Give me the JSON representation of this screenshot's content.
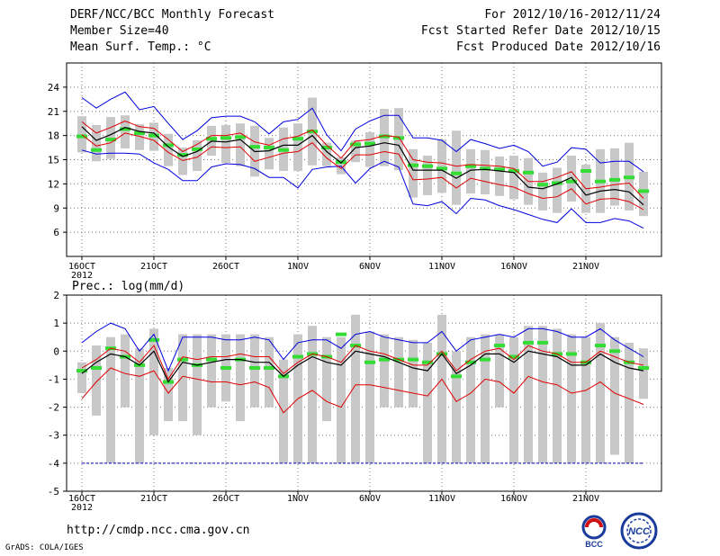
{
  "header": {
    "title": "DERF/NCC/BCC Monthly Forecast",
    "member_size": "Member Size=40",
    "variable1": "Mean Surf. Temp.: °C",
    "period": "For 2012/10/16-2012/11/24",
    "started": "Fcst Started Refer Date 2012/10/15",
    "produced": "Fcst Produced Date 2012/10/16"
  },
  "footer": {
    "url": "http://cmdp.ncc.cma.gov.cn",
    "grads": "GrADS: COLA/IGES",
    "logo_left": "BCC",
    "logo_right": "NCC"
  },
  "colors": {
    "ensemble_mean": "#000000",
    "spread": "#e00000",
    "envelope": "#0000e0",
    "box": "#c8c8c8",
    "climatology": "#33dd33",
    "baseline": "#0000c0"
  },
  "chart_data": [
    {
      "type": "line",
      "title": "Mean Surf. Temp.: °C",
      "x_tick_labels": [
        "16OCT\n2012",
        "21OCT",
        "26OCT",
        "1NOV",
        "6NOV",
        "11NOV",
        "16NOV",
        "21NOV"
      ],
      "x_tick_days": [
        1,
        6,
        11,
        16,
        21,
        26,
        31,
        36
      ],
      "ylim": [
        3,
        27
      ],
      "y_ticks": [
        6,
        9,
        12,
        15,
        18,
        21,
        24
      ],
      "series": [
        {
          "name": "max",
          "values": [
            22.7,
            21.4,
            22.5,
            23.4,
            21.2,
            21.6,
            19.5,
            17.5,
            18.6,
            20.2,
            20.4,
            20.4,
            19.7,
            18.2,
            19.7,
            20.0,
            21.4,
            18.1,
            16.1,
            18.8,
            19.8,
            20.5,
            20.5,
            17.7,
            17.7,
            17.4,
            16.0,
            17.5,
            17.0,
            16.4,
            16.8,
            16.0,
            14.2,
            14.7,
            16.5,
            16.3,
            14.6,
            14.8,
            14.8,
            13.5
          ]
        },
        {
          "name": "spread_upper",
          "values": [
            19.7,
            18.3,
            19.0,
            19.8,
            19.1,
            18.9,
            17.5,
            16.0,
            16.9,
            18.0,
            18.0,
            18.3,
            17.2,
            16.8,
            17.6,
            17.9,
            18.7,
            16.8,
            15.2,
            17.3,
            17.5,
            18.0,
            17.8,
            15.0,
            14.7,
            14.6,
            14.2,
            14.4,
            14.3,
            14.2,
            13.9,
            12.3,
            12.3,
            12.8,
            13.5,
            11.4,
            11.6,
            11.9,
            12.1,
            10.2
          ]
        },
        {
          "name": "mean",
          "values": [
            19.1,
            17.4,
            18.1,
            19.0,
            18.5,
            18.3,
            16.6,
            15.4,
            16.0,
            17.3,
            17.2,
            17.5,
            16.0,
            16.1,
            16.8,
            16.8,
            18.0,
            16.0,
            14.6,
            16.5,
            16.7,
            17.1,
            16.8,
            13.7,
            13.7,
            13.7,
            12.7,
            13.7,
            13.8,
            13.6,
            13.4,
            11.6,
            11.4,
            12.0,
            12.8,
            10.6,
            11.1,
            11.3,
            11.0,
            9.4
          ]
        },
        {
          "name": "spread_lower",
          "values": [
            18.1,
            16.7,
            17.1,
            18.3,
            17.9,
            17.4,
            15.9,
            14.9,
            15.3,
            16.6,
            16.5,
            16.6,
            14.8,
            15.3,
            15.8,
            16.0,
            17.1,
            15.2,
            13.9,
            15.6,
            15.6,
            16.0,
            15.7,
            12.5,
            12.6,
            12.8,
            11.5,
            12.7,
            12.3,
            11.9,
            11.6,
            10.8,
            10.2,
            10.4,
            11.4,
            9.5,
            10.1,
            10.2,
            9.8,
            8.8
          ]
        },
        {
          "name": "min",
          "values": [
            16.2,
            15.7,
            15.8,
            15.8,
            15.7,
            14.6,
            13.8,
            12.4,
            12.4,
            14.1,
            14.5,
            14.4,
            13.9,
            12.8,
            12.8,
            11.5,
            13.8,
            14.1,
            14.2,
            12.1,
            13.9,
            14.8,
            14.1,
            9.5,
            9.3,
            9.8,
            8.3,
            10.2,
            10.0,
            9.3,
            8.8,
            8.2,
            7.6,
            7.2,
            8.9,
            7.2,
            7.2,
            7.7,
            7.4,
            6.5
          ]
        },
        {
          "name": "box_top",
          "values": [
            20.4,
            19.3,
            20.3,
            20.5,
            19.4,
            19.6,
            18.2,
            16.5,
            17.4,
            19.2,
            19.3,
            19.5,
            19.2,
            17.7,
            19.0,
            19.5,
            22.7,
            17.1,
            15.3,
            17.4,
            18.4,
            21.3,
            21.4,
            16.3,
            15.5,
            17.5,
            18.6,
            16.3,
            16.2,
            15.4,
            15.5,
            15.2,
            13.4,
            14.0,
            15.5,
            14.4,
            16.3,
            16.4,
            17.1,
            13.5
          ]
        },
        {
          "name": "box_bottom",
          "values": [
            15.9,
            14.8,
            15.1,
            16.4,
            16.2,
            16.1,
            14.2,
            13.1,
            13.6,
            15.5,
            14.6,
            14.2,
            12.9,
            13.8,
            13.6,
            13.6,
            14.3,
            14.2,
            13.2,
            14.7,
            14.1,
            14.2,
            13.7,
            10.3,
            10.6,
            10.9,
            9.4,
            10.8,
            10.7,
            10.5,
            10.1,
            9.4,
            8.7,
            8.4,
            9.8,
            8.4,
            8.4,
            9.3,
            8.7,
            8.0
          ]
        },
        {
          "name": "climatology",
          "values": [
            17.9,
            16.2,
            17.5,
            18.8,
            18.3,
            18.0,
            16.8,
            15.6,
            16.3,
            17.6,
            17.7,
            17.8,
            16.6,
            16.5,
            16.2,
            17.6,
            18.5,
            16.5,
            14.7,
            16.9,
            17.0,
            17.9,
            17.7,
            14.3,
            14.2,
            13.9,
            13.3,
            14.2,
            13.9,
            13.8,
            13.6,
            13.4,
            11.9,
            12.1,
            12.3,
            13.6,
            12.3,
            12.5,
            12.8,
            11.1
          ]
        }
      ]
    },
    {
      "type": "line",
      "title": "Prec.: log(mm/d)",
      "x_tick_labels": [
        "16OCT\n2012",
        "21OCT",
        "26OCT",
        "1NOV",
        "6NOV",
        "11NOV",
        "16NOV",
        "21NOV"
      ],
      "x_tick_days": [
        1,
        6,
        11,
        16,
        21,
        26,
        31,
        36
      ],
      "ylim": [
        -5,
        2
      ],
      "y_ticks": [
        -5,
        -4,
        -3,
        -2,
        -1,
        0,
        1,
        2
      ],
      "series": [
        {
          "name": "max",
          "values": [
            0.3,
            0.7,
            1.0,
            0.8,
            0.0,
            0.6,
            -0.7,
            0.5,
            0.5,
            0.5,
            0.4,
            0.4,
            0.5,
            0.4,
            -0.3,
            0.3,
            0.4,
            0.4,
            0.1,
            0.6,
            0.7,
            0.5,
            0.4,
            0.3,
            0.3,
            0.7,
            0.0,
            0.4,
            0.5,
            0.6,
            0.5,
            0.8,
            0.8,
            0.7,
            0.5,
            0.5,
            0.8,
            0.4,
            0.1,
            -0.2
          ]
        },
        {
          "name": "spread_upper",
          "values": [
            -0.6,
            -0.3,
            0.1,
            0.0,
            -0.4,
            0.2,
            -1.0,
            -0.2,
            -0.3,
            -0.2,
            -0.2,
            -0.1,
            -0.2,
            -0.2,
            -0.8,
            -0.4,
            -0.1,
            -0.2,
            -0.4,
            0.2,
            0.0,
            -0.1,
            -0.3,
            -0.5,
            -0.5,
            0.0,
            -0.7,
            -0.3,
            0.0,
            0.1,
            -0.3,
            0.2,
            0.0,
            -0.1,
            -0.4,
            -0.4,
            0.0,
            -0.2,
            -0.4,
            -0.5
          ]
        },
        {
          "name": "mean",
          "values": [
            -0.8,
            -0.4,
            -0.1,
            -0.2,
            -0.5,
            0.0,
            -1.1,
            -0.4,
            -0.5,
            -0.4,
            -0.3,
            -0.3,
            -0.4,
            -0.4,
            -0.9,
            -0.5,
            -0.2,
            -0.4,
            -0.5,
            0.0,
            -0.1,
            -0.2,
            -0.4,
            -0.6,
            -0.7,
            -0.1,
            -0.8,
            -0.5,
            -0.1,
            -0.1,
            -0.4,
            0.0,
            -0.1,
            -0.2,
            -0.5,
            -0.5,
            -0.1,
            -0.4,
            -0.6,
            -0.7
          ]
        },
        {
          "name": "spread_lower",
          "values": [
            -1.7,
            -1.1,
            -0.6,
            -0.8,
            -0.9,
            -0.7,
            -1.5,
            -0.9,
            -1.0,
            -1.1,
            -1.1,
            -1.2,
            -1.1,
            -1.3,
            -2.2,
            -1.7,
            -1.4,
            -1.8,
            -2.0,
            -1.2,
            -1.2,
            -1.3,
            -1.4,
            -1.5,
            -1.6,
            -1.0,
            -1.8,
            -1.5,
            -1.0,
            -1.1,
            -1.5,
            -0.9,
            -1.1,
            -1.2,
            -1.5,
            -1.4,
            -1.1,
            -1.5,
            -1.7,
            -1.9
          ]
        },
        {
          "name": "box_top",
          "values": [
            -0.4,
            0.2,
            0.5,
            0.6,
            0.1,
            0.8,
            -0.6,
            0.6,
            0.6,
            0.6,
            0.6,
            0.6,
            0.6,
            0.5,
            -0.3,
            0.6,
            0.9,
            0.5,
            0.5,
            1.3,
            0.7,
            0.6,
            0.5,
            0.4,
            0.3,
            1.3,
            0.0,
            0.5,
            0.6,
            0.6,
            0.5,
            0.9,
            0.9,
            0.8,
            0.6,
            0.5,
            1.0,
            0.5,
            0.3,
            0.1
          ]
        },
        {
          "name": "box_bottom",
          "values": [
            -1.5,
            -2.3,
            -4.0,
            -2.0,
            -4.0,
            -3.0,
            -2.5,
            -2.5,
            -3.0,
            -2.0,
            -1.8,
            -2.5,
            -2.0,
            -2.0,
            -4.0,
            -4.0,
            -4.0,
            -2.5,
            -4.0,
            -4.0,
            -4.0,
            -2.0,
            -2.0,
            -2.0,
            -4.0,
            -4.0,
            -4.0,
            -4.0,
            -4.0,
            -2.0,
            -4.0,
            -4.0,
            -4.0,
            -4.0,
            -4.0,
            -4.0,
            -4.0,
            -3.7,
            -4.0,
            -1.7
          ]
        },
        {
          "name": "climatology",
          "values": [
            -0.7,
            -0.6,
            0.1,
            -0.2,
            -0.5,
            0.4,
            -1.1,
            -0.3,
            -0.5,
            -0.3,
            -0.6,
            -0.3,
            -0.6,
            -0.6,
            -0.9,
            -0.2,
            -0.1,
            -0.2,
            0.6,
            0.2,
            -0.4,
            -0.3,
            -0.3,
            -0.3,
            -0.4,
            -0.1,
            -0.9,
            -0.4,
            -0.3,
            0.2,
            -0.2,
            0.3,
            0.3,
            -0.1,
            -0.1,
            -0.4,
            0.2,
            0.0,
            -0.4,
            -0.6
          ]
        },
        {
          "name": "baseline",
          "values": [
            -4.0
          ]
        }
      ]
    }
  ]
}
